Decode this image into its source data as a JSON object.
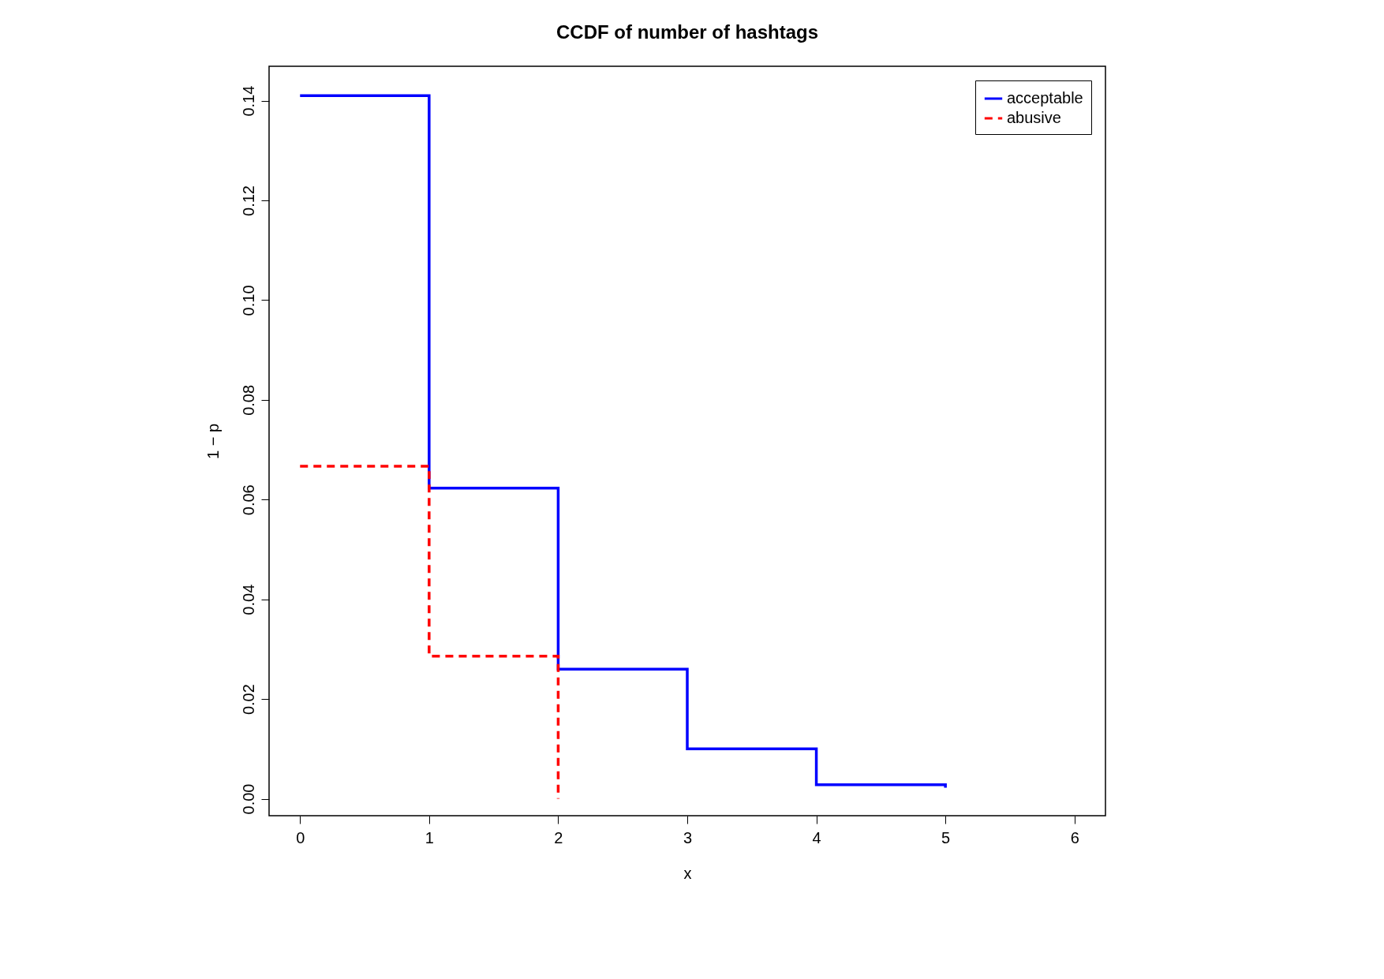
{
  "chart_data": {
    "type": "step",
    "title": "CCDF of number of hashtags",
    "xlabel": "x",
    "ylabel": "1 − p",
    "xlim": [
      -0.24,
      6.24
    ],
    "xticks": [
      0,
      1,
      2,
      3,
      4,
      5,
      6
    ],
    "ylim": [
      -0.0034,
      0.1469
    ],
    "yticks": [
      {
        "value": 0,
        "label": "0.00"
      },
      0.02,
      0.04,
      0.06,
      0.08,
      {
        "value": 0.1,
        "label": "0.10"
      },
      0.12,
      0.14
    ],
    "series": [
      {
        "name": "acceptable",
        "color": "#0000ff",
        "line_style": "solid",
        "x": [
          0,
          1,
          2,
          3,
          4,
          5
        ],
        "values": [
          0.141,
          0.0623,
          0.026,
          0.01,
          0.0028,
          0.0022
        ]
      },
      {
        "name": "abusive",
        "color": "#ff0000",
        "line_style": "dashed",
        "x": [
          0,
          1,
          2
        ],
        "values": [
          0.0667,
          0.0286,
          0.0
        ]
      }
    ],
    "legend": "top right",
    "grid": false
  }
}
